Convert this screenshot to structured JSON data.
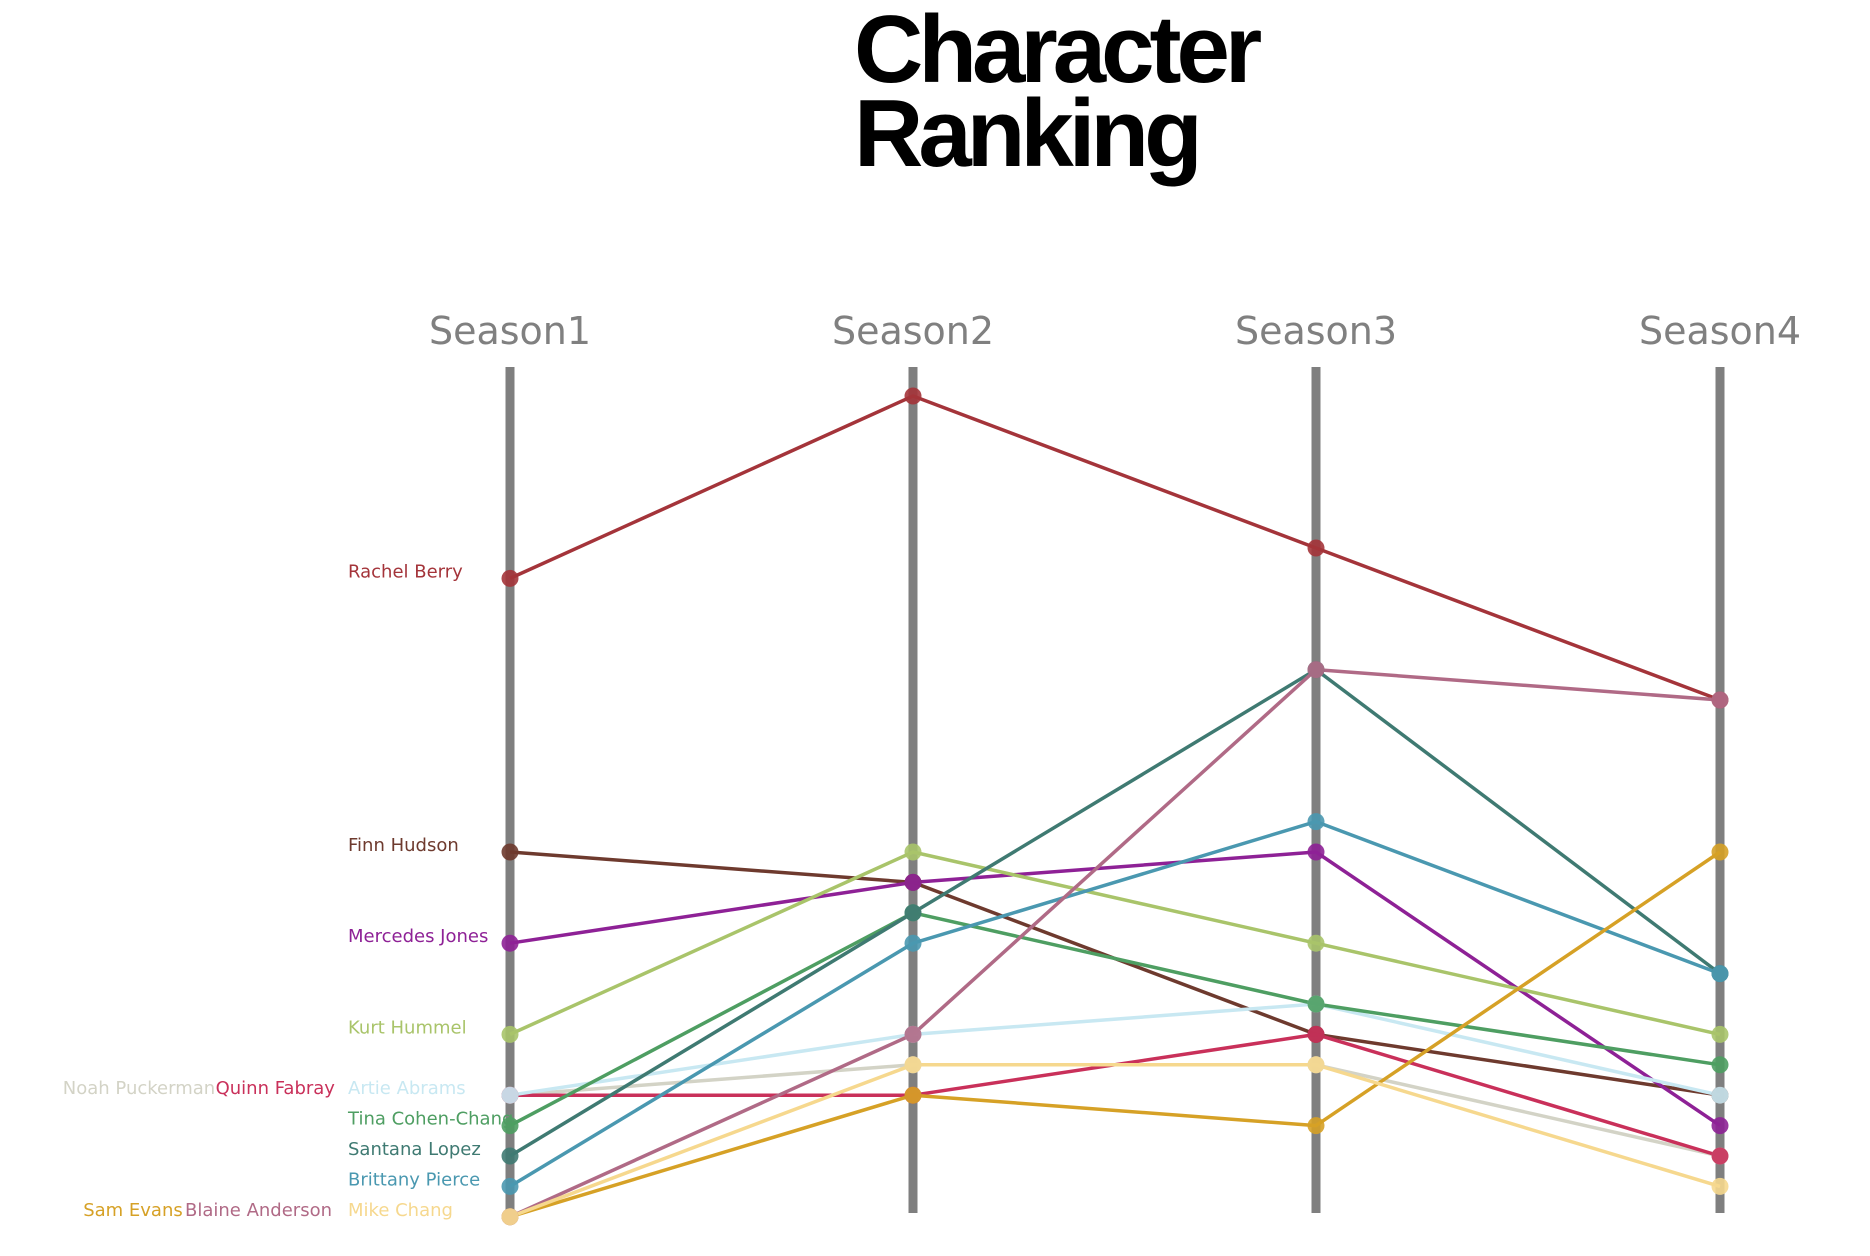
{
  "chart_data": {
    "type": "line",
    "title_lines": [
      "Character",
      "Ranking"
    ],
    "categories": [
      "Season1",
      "Season2",
      "Season3",
      "Season4"
    ],
    "ylim": [
      1,
      29
    ],
    "y_inverted": true,
    "series": [
      {
        "name": "Rachel Berry",
        "color": "#a4343a",
        "values": [
          7,
          1,
          6,
          11
        ]
      },
      {
        "name": "Finn Hudson",
        "color": "#6e3a2e",
        "values": [
          16,
          17,
          22,
          24
        ]
      },
      {
        "name": "Mercedes Jones",
        "color": "#8e2196",
        "values": [
          19,
          17,
          16,
          25
        ]
      },
      {
        "name": "Kurt Hummel",
        "color": "#a9c46a",
        "values": [
          22,
          16,
          19,
          22
        ]
      },
      {
        "name": "Noah Puckerman",
        "color": "#d3d3c6",
        "values": [
          24,
          23,
          23,
          26
        ]
      },
      {
        "name": "Quinn Fabray",
        "color": "#c9305a",
        "values": [
          24,
          24,
          22,
          26
        ]
      },
      {
        "name": "Artie Abrams",
        "color": "#c8e8f2",
        "values": [
          24,
          22,
          21,
          24
        ]
      },
      {
        "name": "Tina Cohen-Chang",
        "color": "#4e9e62",
        "values": [
          25,
          18,
          21,
          23
        ]
      },
      {
        "name": "Santana Lopez",
        "color": "#3f7a72",
        "values": [
          26,
          18,
          10,
          20
        ]
      },
      {
        "name": "Brittany Pierce",
        "color": "#4a98b0",
        "values": [
          27,
          19,
          15,
          20
        ]
      },
      {
        "name": "Sam Evans",
        "color": "#d6a126",
        "values": [
          28,
          24,
          25,
          16
        ]
      },
      {
        "name": "Blaine Anderson",
        "color": "#b06a86",
        "values": [
          28,
          22,
          10,
          11
        ]
      },
      {
        "name": "Mike Chang",
        "color": "#f6d88e",
        "values": [
          28,
          23,
          23,
          27
        ]
      }
    ],
    "legend_placement": "left of Season1 axis"
  }
}
